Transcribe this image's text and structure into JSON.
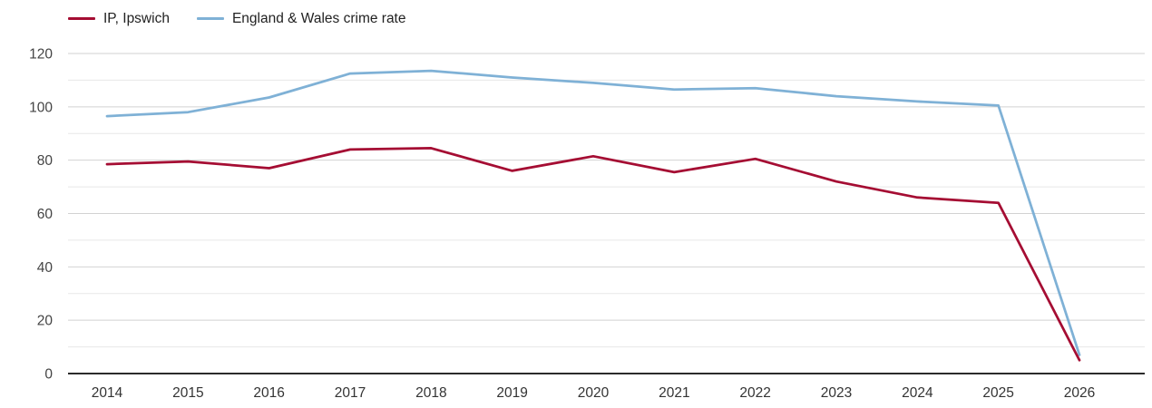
{
  "legend": {
    "items": [
      {
        "label": "IP, Ipswich"
      },
      {
        "label": "England & Wales crime rate"
      }
    ]
  },
  "chart_data": {
    "type": "line",
    "title": "",
    "xlabel": "",
    "ylabel": "",
    "categories": [
      "2014",
      "2015",
      "2016",
      "2017",
      "2018",
      "2019",
      "2020",
      "2021",
      "2022",
      "2023",
      "2024",
      "2025",
      "2026"
    ],
    "series": [
      {
        "name": "IP, Ipswich",
        "color": "#a50d33",
        "values": [
          78.5,
          79.5,
          77,
          84,
          84.5,
          76,
          81.5,
          75.5,
          80.5,
          72,
          66,
          64,
          5
        ]
      },
      {
        "name": "England & Wales crime rate",
        "color": "#7fb1d6",
        "values": [
          96.5,
          98,
          103.5,
          112.5,
          113.5,
          111,
          109,
          106.5,
          107,
          104,
          102,
          100.5,
          7
        ]
      }
    ],
    "ylim": [
      0,
      120
    ],
    "y_ticks": [
      0,
      20,
      40,
      60,
      80,
      100,
      120
    ],
    "grid": "horizontal lines every 10 units; darker at labeled 20-unit ticks",
    "legend_position": "top-left",
    "colors": {
      "grid_major": "#d2d2d2",
      "grid_minor": "#e7e7e7",
      "axis_line": "#2b2b2b",
      "y_tick_text": "#444444",
      "x_tick_text": "#333333"
    }
  }
}
